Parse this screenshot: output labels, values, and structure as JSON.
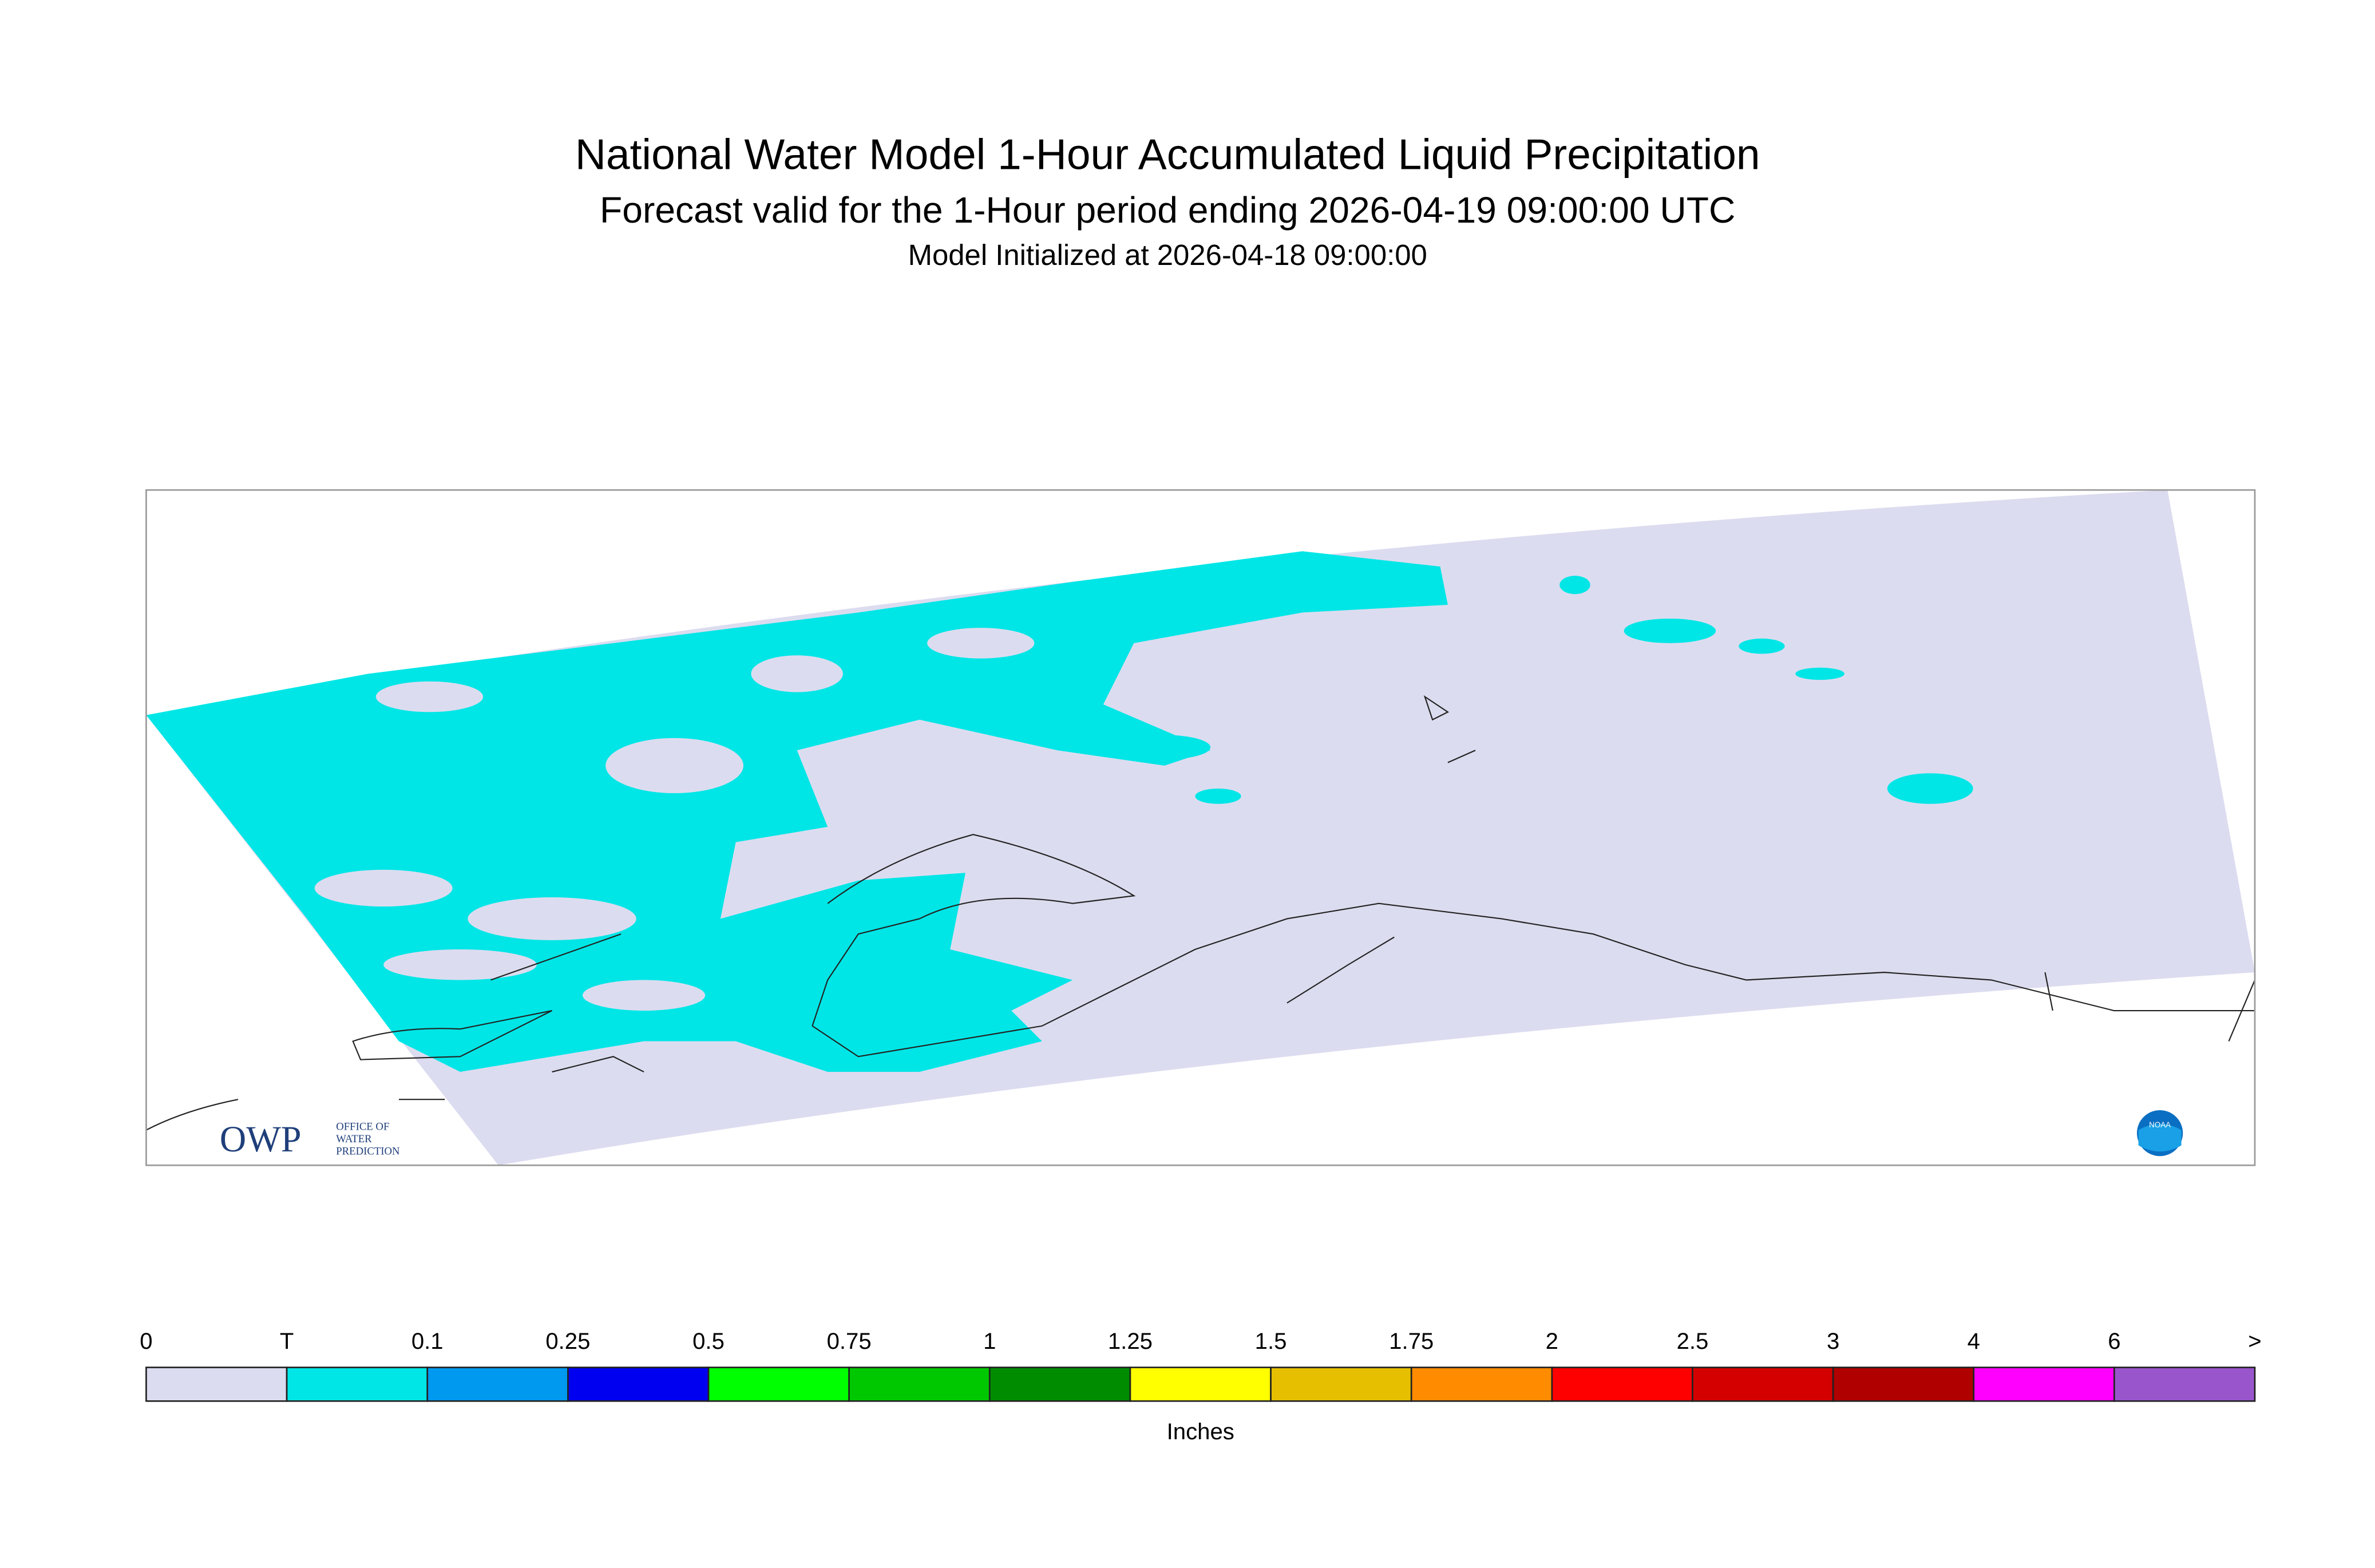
{
  "header": {
    "title": "National Water Model 1-Hour Accumulated Liquid Precipitation",
    "subtitle": "Forecast valid for the 1-Hour period ending 2026-04-19 09:00:00 UTC",
    "initialized": "Model Initialized at 2026-04-18 09:00:00"
  },
  "logos": {
    "owp": "OWP",
    "owp_text": [
      "OFFICE OF",
      "WATER",
      "PREDICTION"
    ],
    "noaa": "NOAA"
  },
  "legend": {
    "labels": [
      "0",
      "T",
      "0.1",
      "0.25",
      "0.5",
      "0.75",
      "1",
      "1.25",
      "1.5",
      "1.75",
      "2",
      "2.5",
      "3",
      "4",
      "6",
      ">"
    ],
    "colors": [
      "#dcdcf0",
      "#00e6e6",
      "#0099f0",
      "#0000f0",
      "#00ff00",
      "#00c800",
      "#008c00",
      "#ffff00",
      "#e6c000",
      "#ff8c00",
      "#ff0000",
      "#d40000",
      "#b00000",
      "#ff00ff",
      "#9955cc"
    ],
    "unit": "Inches"
  }
}
